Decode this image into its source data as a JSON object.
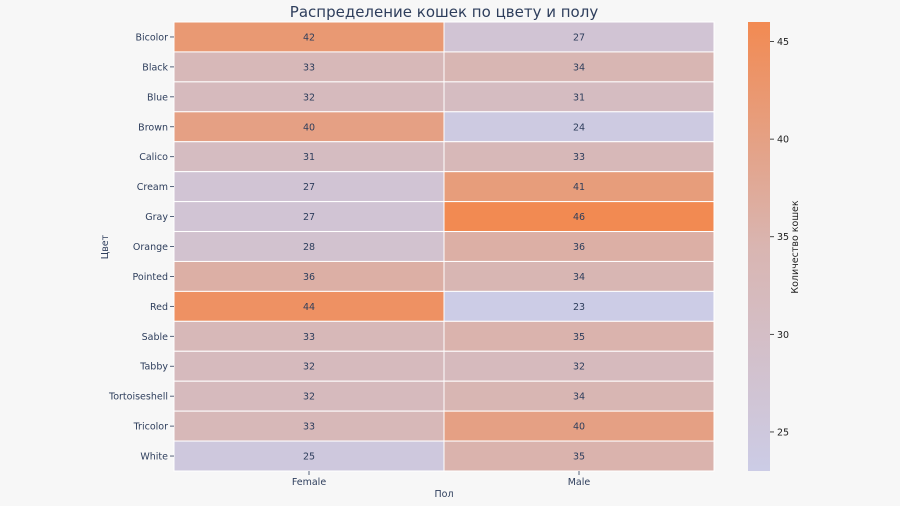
{
  "chart_data": {
    "type": "heatmap",
    "title": "Распределение кошек по цвету и полу",
    "xlabel": "Пол",
    "ylabel": "Цвет",
    "colorbar_label": "Количество кошек",
    "x": [
      "Female",
      "Male"
    ],
    "y": [
      "Bicolor",
      "Black",
      "Blue",
      "Brown",
      "Calico",
      "Cream",
      "Gray",
      "Orange",
      "Pointed",
      "Red",
      "Sable",
      "Tabby",
      "Tortoiseshell",
      "Tricolor",
      "White"
    ],
    "values": [
      [
        42,
        27
      ],
      [
        33,
        34
      ],
      [
        32,
        31
      ],
      [
        40,
        24
      ],
      [
        31,
        33
      ],
      [
        27,
        41
      ],
      [
        27,
        46
      ],
      [
        28,
        36
      ],
      [
        36,
        34
      ],
      [
        44,
        23
      ],
      [
        33,
        35
      ],
      [
        32,
        32
      ],
      [
        32,
        34
      ],
      [
        33,
        40
      ],
      [
        25,
        35
      ]
    ],
    "vmin": 23,
    "vmax": 46,
    "colorbar_ticks": [
      25,
      30,
      35,
      40,
      45
    ],
    "colors": {
      "low": "#cccce6",
      "mid": "#d9b5b1",
      "high": "#f28a52"
    }
  }
}
